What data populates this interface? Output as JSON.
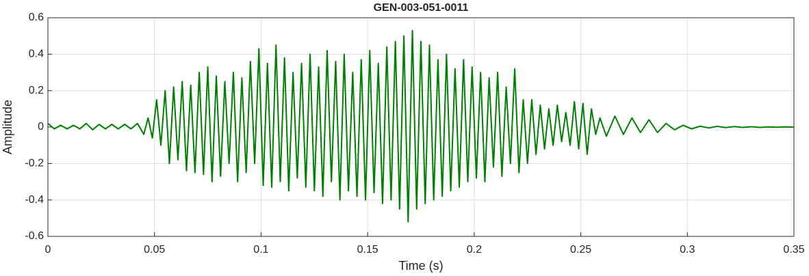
{
  "chart_data": {
    "type": "line",
    "title": "GEN-003-051-0011",
    "xlabel": "Time (s)",
    "ylabel": "Amplitude",
    "xlim": [
      0,
      0.35
    ],
    "ylim": [
      -0.6,
      0.6
    ],
    "xticks": [
      0,
      0.05,
      0.1,
      0.15,
      0.2,
      0.25,
      0.3,
      0.35
    ],
    "yticks": [
      -0.6,
      -0.4,
      -0.2,
      0,
      0.2,
      0.4,
      0.6
    ],
    "grid": true,
    "x": [
      0,
      0.003,
      0.006,
      0.009,
      0.012,
      0.015,
      0.018,
      0.021,
      0.024,
      0.027,
      0.03,
      0.033,
      0.036,
      0.039,
      0.042,
      0.045,
      0.047,
      0.049,
      0.051,
      0.053,
      0.055,
      0.057,
      0.059,
      0.061,
      0.063,
      0.065,
      0.067,
      0.069,
      0.071,
      0.073,
      0.075,
      0.077,
      0.079,
      0.081,
      0.083,
      0.085,
      0.087,
      0.089,
      0.091,
      0.093,
      0.095,
      0.097,
      0.099,
      0.101,
      0.103,
      0.105,
      0.107,
      0.109,
      0.111,
      0.113,
      0.115,
      0.117,
      0.119,
      0.121,
      0.123,
      0.125,
      0.127,
      0.129,
      0.131,
      0.133,
      0.135,
      0.137,
      0.139,
      0.141,
      0.143,
      0.145,
      0.147,
      0.149,
      0.151,
      0.153,
      0.155,
      0.157,
      0.159,
      0.161,
      0.163,
      0.165,
      0.167,
      0.169,
      0.171,
      0.173,
      0.175,
      0.177,
      0.179,
      0.181,
      0.183,
      0.185,
      0.187,
      0.189,
      0.191,
      0.193,
      0.195,
      0.197,
      0.199,
      0.201,
      0.203,
      0.205,
      0.207,
      0.209,
      0.211,
      0.213,
      0.215,
      0.217,
      0.219,
      0.221,
      0.223,
      0.225,
      0.227,
      0.229,
      0.231,
      0.233,
      0.235,
      0.237,
      0.239,
      0.241,
      0.243,
      0.245,
      0.247,
      0.249,
      0.251,
      0.253,
      0.255,
      0.257,
      0.259,
      0.262,
      0.266,
      0.27,
      0.274,
      0.278,
      0.282,
      0.286,
      0.29,
      0.294,
      0.298,
      0.302,
      0.306,
      0.31,
      0.314,
      0.318,
      0.322,
      0.326,
      0.33,
      0.334,
      0.338,
      0.342,
      0.346,
      0.35
    ],
    "series": [
      {
        "name": "Amplitude",
        "color": "#008000",
        "values": [
          0.02,
          -0.01,
          0.01,
          -0.01,
          0.01,
          -0.01,
          0.02,
          -0.015,
          0.015,
          -0.01,
          0.015,
          -0.01,
          0.015,
          -0.01,
          0.02,
          -0.04,
          0.05,
          -0.06,
          0.15,
          -0.1,
          0.2,
          -0.2,
          0.22,
          -0.18,
          0.25,
          -0.24,
          0.23,
          -0.25,
          0.3,
          -0.26,
          0.33,
          -0.3,
          0.28,
          -0.27,
          0.25,
          -0.2,
          0.3,
          -0.3,
          0.27,
          -0.25,
          0.36,
          -0.2,
          0.43,
          -0.32,
          0.35,
          -0.33,
          0.45,
          -0.3,
          0.38,
          -0.35,
          0.3,
          -0.28,
          0.35,
          -0.33,
          0.4,
          -0.35,
          0.33,
          -0.38,
          0.42,
          -0.3,
          0.36,
          -0.4,
          0.4,
          -0.35,
          0.3,
          -0.38,
          0.37,
          -0.4,
          0.42,
          -0.36,
          0.35,
          -0.42,
          0.44,
          -0.4,
          0.47,
          -0.45,
          0.5,
          -0.52,
          0.53,
          -0.45,
          0.47,
          -0.42,
          0.45,
          -0.4,
          0.37,
          -0.38,
          0.4,
          -0.35,
          0.32,
          -0.33,
          0.37,
          -0.3,
          0.33,
          -0.28,
          0.3,
          -0.3,
          0.27,
          -0.22,
          0.3,
          -0.27,
          0.22,
          -0.2,
          0.32,
          -0.25,
          0.15,
          -0.2,
          0.15,
          -0.15,
          0.12,
          -0.12,
          0.1,
          -0.1,
          0.12,
          -0.08,
          0.08,
          -0.1,
          0.14,
          -0.12,
          0.13,
          -0.15,
          0.1,
          -0.04,
          0.05,
          -0.05,
          0.06,
          -0.04,
          0.05,
          -0.03,
          0.04,
          -0.03,
          0.02,
          -0.015,
          0.01,
          -0.01,
          0.005,
          -0.005,
          0.004,
          -0.003,
          0.003,
          -0.002,
          0.002,
          -0.002,
          0.001,
          -0.001,
          0.001,
          0
        ]
      }
    ]
  }
}
